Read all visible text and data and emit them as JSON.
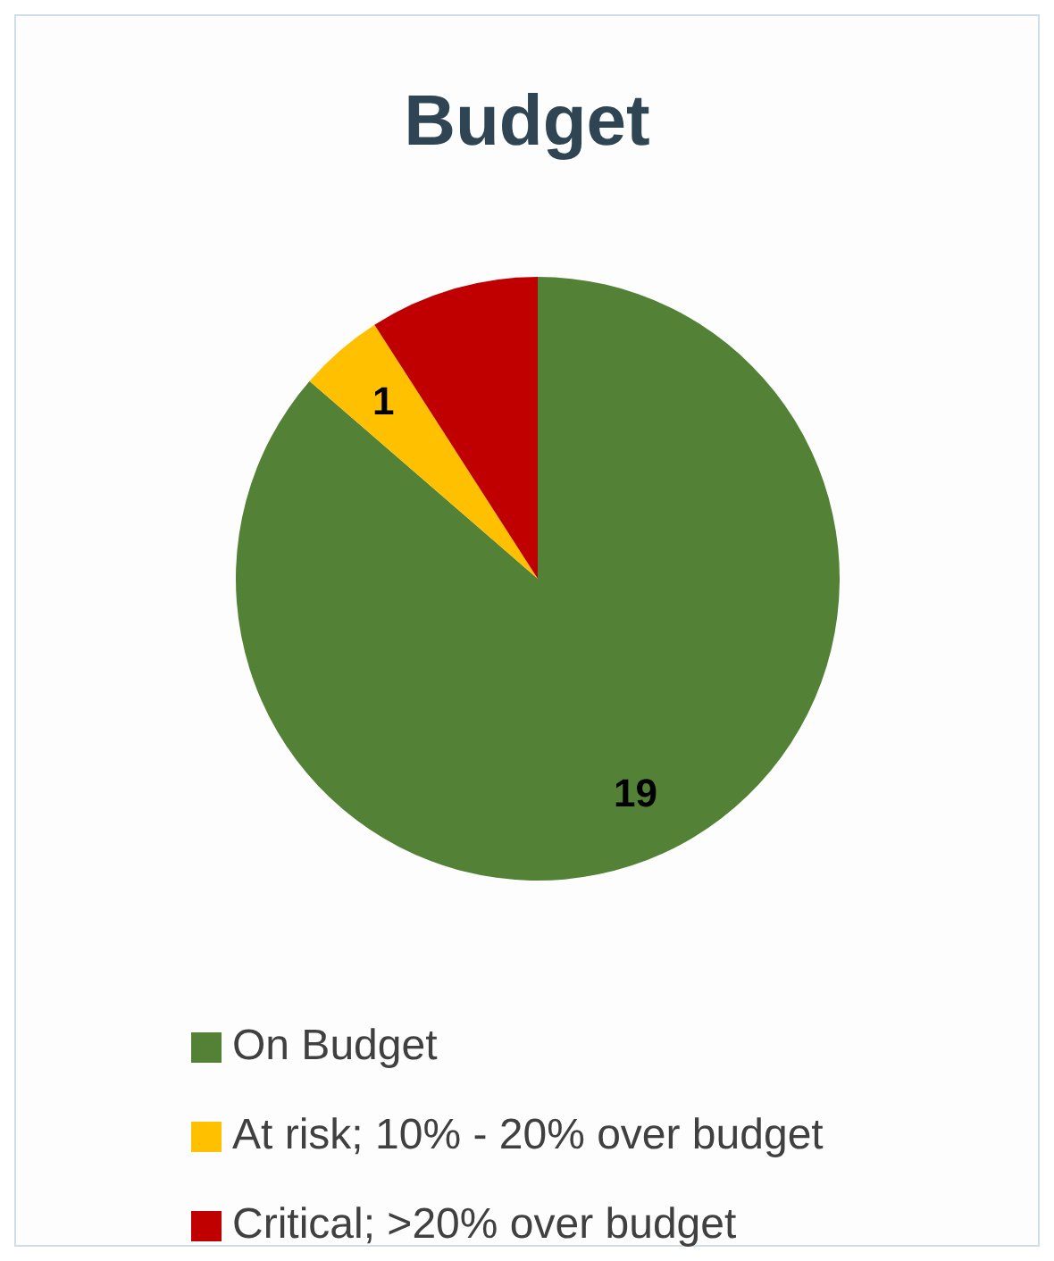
{
  "chart_data": {
    "type": "pie",
    "title": "Budget",
    "categories": [
      "On Budget",
      "At risk; 10% - 20% over budget",
      "Critical; >20% over budget"
    ],
    "values": [
      19,
      1,
      2
    ],
    "colors": [
      "#538135",
      "#ffc000",
      "#c00000"
    ],
    "value_labels": [
      "19",
      "1",
      null
    ],
    "legend": "bottom"
  }
}
